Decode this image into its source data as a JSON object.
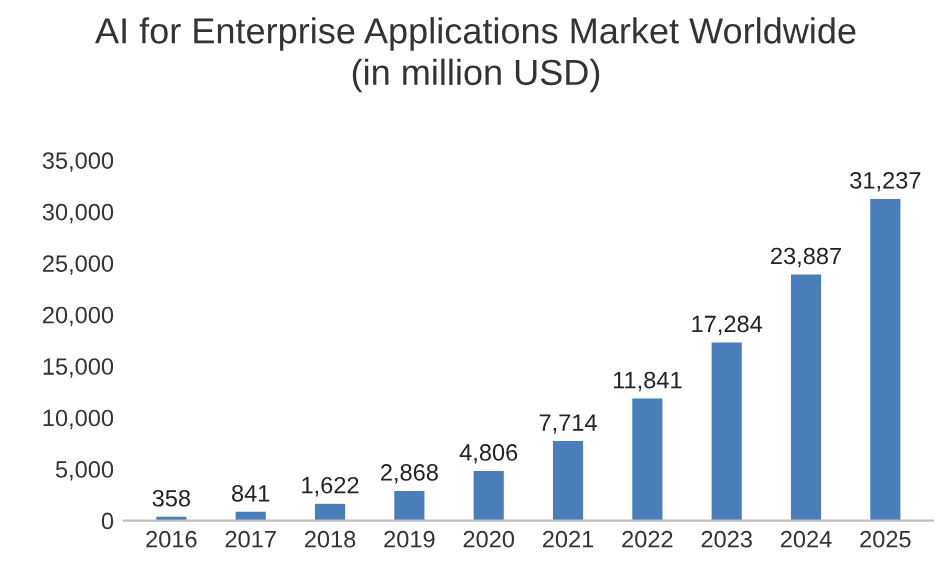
{
  "chart_data": {
    "type": "bar",
    "title": "AI for Enterprise Applications Market Worldwide\n(in million USD)",
    "categories": [
      "2016",
      "2017",
      "2018",
      "2019",
      "2020",
      "2021",
      "2022",
      "2023",
      "2024",
      "2025"
    ],
    "values": [
      358,
      841,
      1622,
      2868,
      4806,
      7714,
      11841,
      17284,
      23887,
      31237
    ],
    "value_labels": [
      "358",
      "841",
      "1,622",
      "2,868",
      "4,806",
      "7,714",
      "11,841",
      "17,284",
      "23,887",
      "31,237"
    ],
    "color": "#4a7ebb",
    "ylim": [
      0,
      35000
    ],
    "yticks": [
      0,
      {
        "value": 5000,
        "label": "5,000"
      },
      {
        "value": 10000,
        "label": "10,000"
      },
      {
        "value": 15000,
        "label": "15,000"
      },
      {
        "value": 20000,
        "label": "20,000"
      },
      {
        "value": 25000,
        "label": "25,000"
      },
      {
        "value": 30000,
        "label": "30,000"
      },
      {
        "value": 35000,
        "label": "35,000"
      }
    ],
    "grid": false,
    "legend": false
  }
}
